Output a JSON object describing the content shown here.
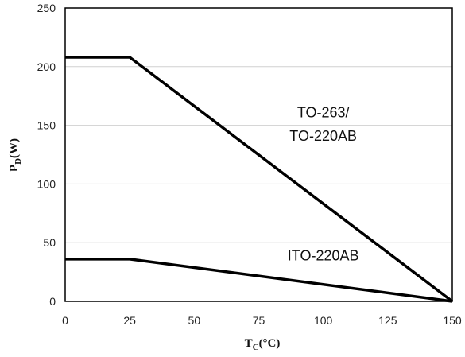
{
  "chart_data": {
    "type": "line",
    "xlabel": {
      "main": "T",
      "sub": "C",
      "unit": "(°C)"
    },
    "ylabel": {
      "main": "P",
      "sub": "D",
      "unit": "(W)"
    },
    "xlim": [
      0,
      150
    ],
    "ylim": [
      0,
      250
    ],
    "xticks": [
      0,
      25,
      50,
      75,
      100,
      125,
      150
    ],
    "yticks": [
      0,
      50,
      100,
      150,
      200,
      250
    ],
    "grid": "horizontal",
    "series": [
      {
        "x": [
          0,
          25,
          150
        ],
        "y": [
          208,
          208,
          0
        ]
      },
      {
        "x": [
          0,
          25,
          150
        ],
        "y": [
          36,
          36,
          0
        ]
      }
    ],
    "annotations": [
      {
        "text": "TO-263/",
        "x": 100,
        "y": 157
      },
      {
        "text": "TO-220AB",
        "x": 100,
        "y": 137
      },
      {
        "text": "ITO-220AB",
        "x": 100,
        "y": 35
      }
    ]
  }
}
